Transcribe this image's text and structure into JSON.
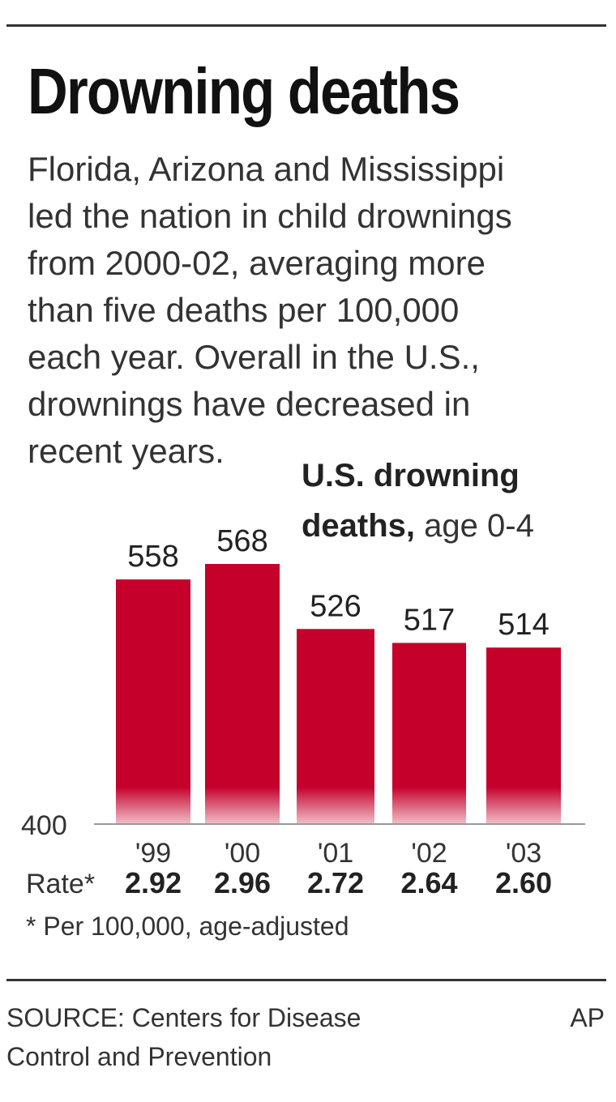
{
  "header": {
    "title": "Drowning deaths",
    "intro_lines": [
      "Florida, Arizona and Mississippi",
      "led the nation in child drownings",
      "from 2000-02, averaging more",
      "than five deaths per 100,000",
      "each year. Overall in the U.S.,",
      "drownings have decreased in",
      "recent years."
    ]
  },
  "chart_data": {
    "type": "bar",
    "title_bold_1": "U.S. drowning",
    "title_bold_2": "deaths,",
    "title_rest": " age 0-4",
    "categories": [
      "'99",
      "'00",
      "'01",
      "'02",
      "'03"
    ],
    "values": [
      558,
      568,
      526,
      517,
      514
    ],
    "value_labels": [
      "558",
      "568",
      "526",
      "517",
      "514"
    ],
    "ylim": [
      400,
      580
    ],
    "baseline_label": "400",
    "rate_label": "Rate*",
    "rates": [
      "2.92",
      "2.96",
      "2.72",
      "2.64",
      "2.60"
    ],
    "bar_color": "#c4002b",
    "grid": false
  },
  "footnote": "* Per 100,000, age-adjusted",
  "source": {
    "line1": "SOURCE: Centers for Disease",
    "line2": "Control and Prevention",
    "credit": "AP"
  }
}
